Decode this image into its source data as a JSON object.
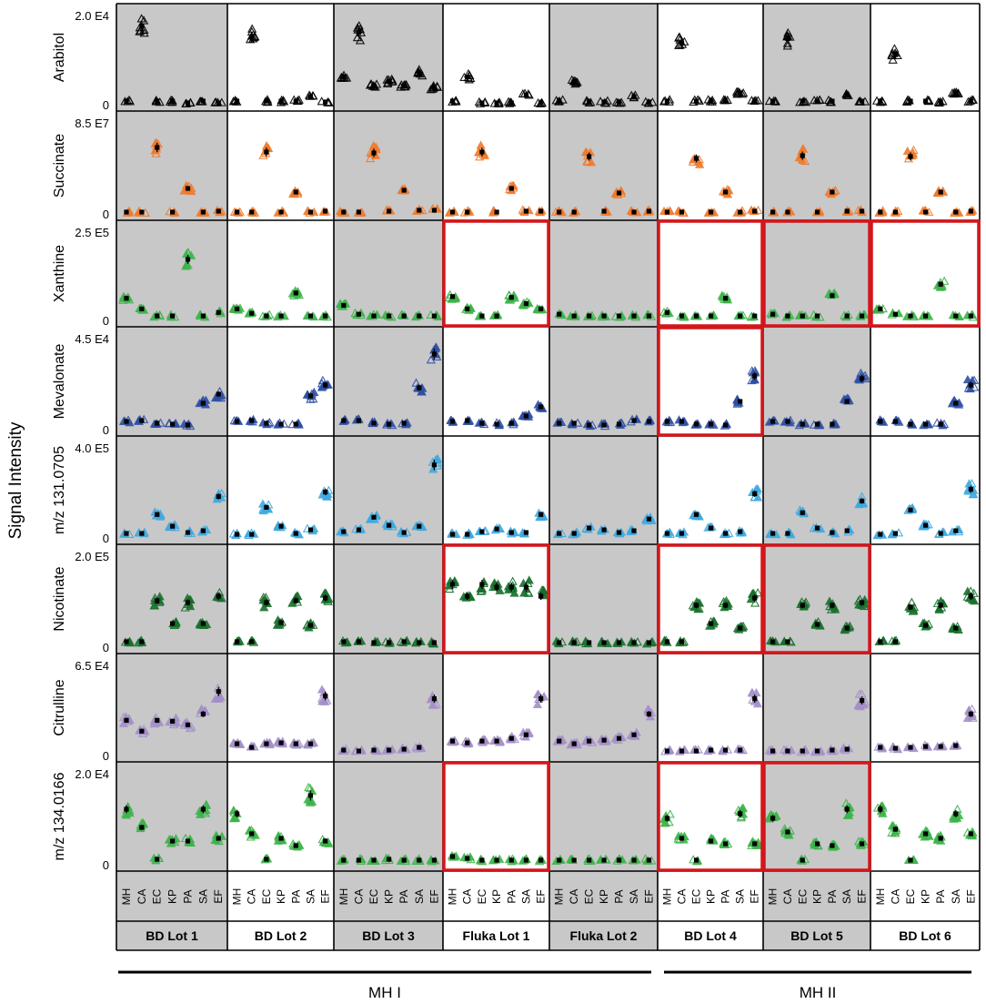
{
  "chart_data": {
    "type": "scatter",
    "title": "",
    "ylabel": "Signal Intensity",
    "x_categories": [
      "MH",
      "CA",
      "EC",
      "KP",
      "PA",
      "SA",
      "EF"
    ],
    "category_colors": {
      "MH": "#000000",
      "CA": "#000000",
      "EC": "#000000",
      "KP": "#000000",
      "PA": "#000000",
      "SA": "#000000",
      "EF": "#000000"
    },
    "lots": [
      {
        "label": "BD Lot 1",
        "shaded": true
      },
      {
        "label": "BD Lot 2",
        "shaded": false
      },
      {
        "label": "BD Lot 3",
        "shaded": true
      },
      {
        "label": "Fluka Lot 1",
        "shaded": false
      },
      {
        "label": "Fluka Lot 2",
        "shaded": true
      },
      {
        "label": "BD Lot 4",
        "shaded": false
      },
      {
        "label": "BD Lot 5",
        "shaded": true
      },
      {
        "label": "BD Lot 6",
        "shaded": false
      }
    ],
    "groups": [
      {
        "label": "MH I",
        "lots": [
          "BD Lot 1",
          "BD Lot 2",
          "BD Lot 3",
          "Fluka Lot 1",
          "Fluka Lot 2"
        ]
      },
      {
        "label": "MH II",
        "lots": [
          "BD Lot 4",
          "BD Lot 5",
          "BD Lot 6"
        ]
      }
    ],
    "rows": [
      {
        "name": "Arabitol",
        "color": "#000000",
        "ymax_label": "2.0 E4",
        "ymin_label": "0",
        "values": [
          [
            3,
            87,
            3,
            3,
            1,
            3,
            1
          ],
          [
            3,
            75,
            3,
            3,
            3,
            8,
            2
          ],
          [
            30,
            80,
            20,
            25,
            20,
            35,
            18
          ],
          [
            3,
            30,
            1,
            1,
            1,
            10,
            1
          ],
          [
            3,
            25,
            2,
            2,
            2,
            8,
            2
          ],
          [
            3,
            68,
            3,
            3,
            3,
            12,
            3
          ],
          [
            3,
            73,
            3,
            3,
            3,
            10,
            3
          ],
          [
            3,
            55,
            3,
            3,
            2,
            12,
            3
          ]
        ],
        "highlight": []
      },
      {
        "name": "Succinate",
        "color": "#f07a2b",
        "ymax_label": "8.5 E7",
        "ymin_label": "0",
        "values": [
          [
            1,
            1,
            72,
            1,
            27,
            1,
            2
          ],
          [
            1,
            1,
            67,
            1,
            23,
            1,
            2
          ],
          [
            1,
            1,
            66,
            2,
            25,
            3,
            3
          ],
          [
            1,
            1,
            67,
            1,
            27,
            2,
            2
          ],
          [
            1,
            1,
            62,
            2,
            22,
            1,
            2
          ],
          [
            1,
            1,
            60,
            1,
            23,
            1,
            2
          ],
          [
            1,
            1,
            63,
            1,
            23,
            2,
            2
          ],
          [
            1,
            1,
            62,
            1,
            23,
            1,
            2
          ]
        ],
        "highlight": []
      },
      {
        "name": "Xanthine",
        "color": "#3cb449",
        "ymax_label": "2.5 E5",
        "ymin_label": "0",
        "values": [
          [
            24,
            12,
            4,
            4,
            68,
            4,
            8
          ],
          [
            12,
            7,
            4,
            4,
            30,
            4,
            4
          ],
          [
            16,
            6,
            4,
            4,
            4,
            4,
            4
          ],
          [
            26,
            12,
            4,
            4,
            25,
            18,
            12
          ],
          [
            6,
            4,
            4,
            4,
            4,
            4,
            4
          ],
          [
            8,
            4,
            4,
            4,
            24,
            4,
            4
          ],
          [
            6,
            4,
            4,
            4,
            27,
            4,
            4
          ],
          [
            12,
            6,
            4,
            4,
            40,
            4,
            4
          ]
        ],
        "highlight": [
          3,
          5,
          6,
          7
        ]
      },
      {
        "name": "Mevalonate",
        "color": "#2d4fa3",
        "ymax_label": "4.5 E4",
        "ymin_label": "0",
        "values": [
          [
            8,
            9,
            6,
            5,
            4,
            28,
            38
          ],
          [
            8,
            9,
            6,
            5,
            5,
            36,
            48
          ],
          [
            9,
            9,
            6,
            5,
            6,
            45,
            82
          ],
          [
            8,
            9,
            6,
            5,
            6,
            14,
            24
          ],
          [
            6,
            6,
            4,
            4,
            5,
            9,
            8
          ],
          [
            8,
            8,
            5,
            5,
            4,
            30,
            58
          ],
          [
            8,
            8,
            5,
            5,
            5,
            30,
            55
          ],
          [
            8,
            8,
            5,
            5,
            5,
            28,
            48
          ]
        ],
        "highlight": [
          5
        ]
      },
      {
        "name": "m/z 131.0705",
        "color": "#3fa9e0",
        "ymax_label": "4.0 E5",
        "ymin_label": "0",
        "values": [
          [
            4,
            4,
            25,
            12,
            5,
            7,
            45
          ],
          [
            3,
            3,
            33,
            12,
            4,
            8,
            50
          ],
          [
            6,
            8,
            22,
            13,
            5,
            12,
            80
          ],
          [
            3,
            3,
            6,
            9,
            5,
            5,
            25
          ],
          [
            4,
            4,
            10,
            8,
            5,
            7,
            20
          ],
          [
            4,
            4,
            25,
            10,
            4,
            6,
            48
          ],
          [
            4,
            4,
            27,
            10,
            5,
            7,
            40
          ],
          [
            3,
            4,
            30,
            13,
            4,
            7,
            53
          ]
        ],
        "highlight": []
      },
      {
        "name": "Nicotinate",
        "color": "#17702b",
        "ymax_label": "2.0 E5",
        "ymin_label": "0",
        "values": [
          [
            5,
            5,
            50,
            25,
            48,
            25,
            55
          ],
          [
            5,
            5,
            48,
            26,
            50,
            23,
            53
          ],
          [
            5,
            5,
            4,
            4,
            5,
            4,
            4
          ],
          [
            68,
            55,
            68,
            65,
            65,
            65,
            55
          ],
          [
            4,
            4,
            4,
            4,
            4,
            4,
            4
          ],
          [
            5,
            5,
            45,
            25,
            45,
            20,
            53
          ],
          [
            5,
            5,
            45,
            24,
            45,
            20,
            48
          ],
          [
            5,
            5,
            43,
            23,
            45,
            20,
            55
          ]
        ],
        "highlight": [
          3,
          5,
          6
        ]
      },
      {
        "name": "Citrulline",
        "color": "#a48fc9",
        "ymax_label": "6.5 E4",
        "ymin_label": "0",
        "values": [
          [
            38,
            26,
            38,
            37,
            33,
            45,
            70
          ],
          [
            12,
            8,
            12,
            13,
            12,
            12,
            65
          ],
          [
            5,
            4,
            5,
            5,
            6,
            8,
            62
          ],
          [
            15,
            13,
            15,
            15,
            18,
            22,
            62
          ],
          [
            15,
            12,
            15,
            16,
            18,
            22,
            45
          ],
          [
            4,
            4,
            4,
            5,
            5,
            5,
            62
          ],
          [
            4,
            4,
            4,
            4,
            5,
            6,
            60
          ],
          [
            8,
            7,
            8,
            9,
            9,
            10,
            45
          ]
        ],
        "highlight": []
      },
      {
        "name": "m/z 134.0166",
        "color": "#3cb449",
        "ymax_label": "2.0 E4",
        "ymin_label": "0",
        "values": [
          [
            60,
            40,
            5,
            25,
            25,
            60,
            28
          ],
          [
            55,
            33,
            5,
            28,
            20,
            75,
            25
          ],
          [
            4,
            4,
            4,
            5,
            4,
            4,
            4
          ],
          [
            8,
            6,
            4,
            4,
            4,
            4,
            4
          ],
          [
            4,
            4,
            4,
            4,
            4,
            4,
            4
          ],
          [
            50,
            28,
            4,
            25,
            22,
            55,
            22
          ],
          [
            50,
            35,
            4,
            22,
            20,
            60,
            22
          ],
          [
            60,
            38,
            4,
            33,
            28,
            55,
            33
          ]
        ],
        "highlight": [
          3,
          5,
          6
        ]
      }
    ]
  }
}
